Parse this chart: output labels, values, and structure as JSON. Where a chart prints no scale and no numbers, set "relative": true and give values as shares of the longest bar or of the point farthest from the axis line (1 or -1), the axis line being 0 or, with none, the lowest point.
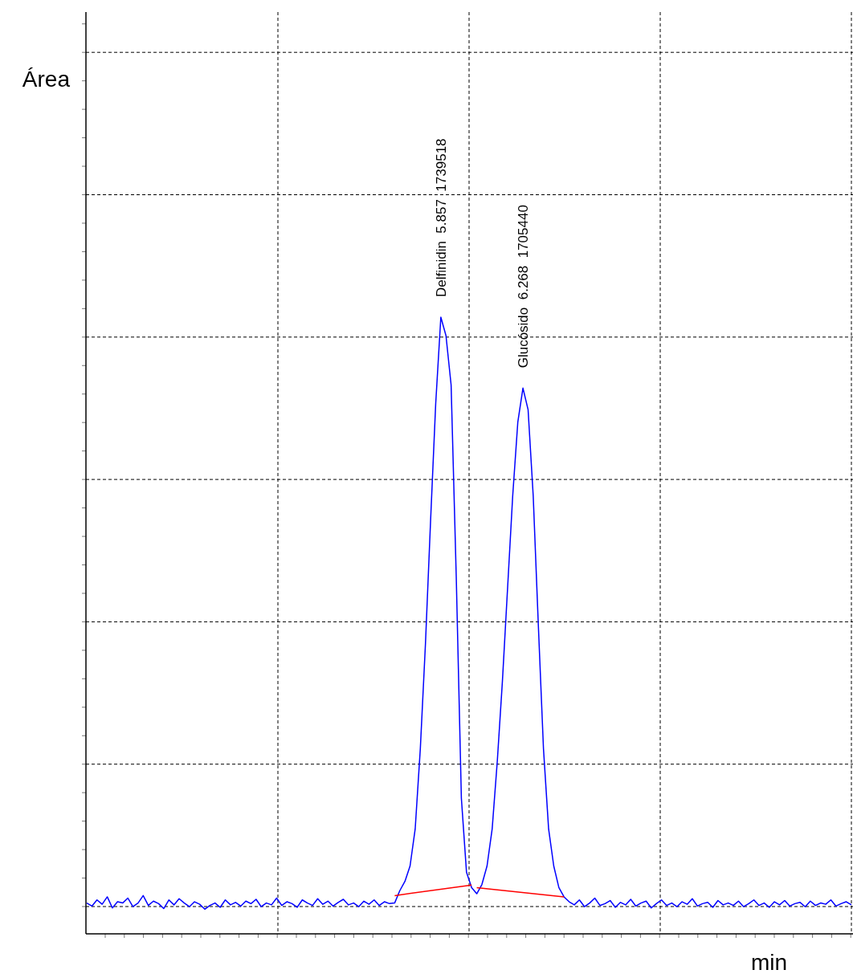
{
  "chart_data": {
    "type": "line",
    "relative": true,
    "grid": true,
    "xlabel": "min",
    "categories": [
      null,
      null,
      null,
      null,
      null,
      null,
      null,
      null,
      null,
      null,
      null,
      null,
      null,
      null,
      null,
      null,
      null,
      null,
      null,
      null,
      null,
      null,
      null,
      null,
      null,
      null,
      null,
      null,
      null,
      null,
      null,
      null,
      null,
      null,
      null,
      null,
      null,
      null,
      null,
      null,
      null,
      null,
      null,
      null,
      null,
      null,
      null,
      null,
      null,
      null,
      null,
      null,
      null,
      null,
      null,
      null,
      null,
      null,
      null,
      null,
      null,
      null,
      null,
      null,
      null,
      null,
      null,
      null,
      null,
      null,
      null,
      null,
      null,
      null,
      null,
      null,
      null,
      null,
      null,
      null,
      null,
      null,
      null,
      null,
      null,
      null,
      null,
      null,
      null,
      null,
      null,
      null,
      null,
      null,
      null,
      null,
      null,
      null,
      null,
      null,
      null,
      null,
      null,
      null,
      null,
      null,
      null,
      null,
      null,
      null,
      null,
      null,
      null,
      null,
      null,
      null,
      null,
      null,
      null,
      null,
      null,
      null,
      null,
      null,
      null,
      null,
      null,
      null,
      null,
      null,
      null,
      null,
      null,
      null,
      null,
      null,
      null,
      null,
      null,
      null,
      null,
      null,
      null,
      null,
      null,
      null,
      null,
      null,
      null,
      null
    ],
    "series": [
      {
        "color": "#0000ff",
        "values": [
          0.05,
          0.045,
          0.055,
          0.048,
          0.06,
          0.042,
          0.052,
          0.05,
          0.058,
          0.044,
          0.05,
          0.062,
          0.046,
          0.053,
          0.049,
          0.041,
          0.055,
          0.047,
          0.057,
          0.05,
          0.044,
          0.052,
          0.048,
          0.04,
          0.046,
          0.05,
          0.043,
          0.055,
          0.047,
          0.051,
          0.045,
          0.053,
          0.049,
          0.056,
          0.044,
          0.05,
          0.047,
          0.058,
          0.046,
          0.052,
          0.049,
          0.043,
          0.055,
          0.05,
          0.046,
          0.057,
          0.048,
          0.053,
          0.045,
          0.051,
          0.056,
          0.047,
          0.05,
          0.044,
          0.053,
          0.048,
          0.055,
          0.046,
          0.052,
          0.049,
          0.05,
          0.07,
          0.085,
          0.11,
          0.17,
          0.3,
          0.47,
          0.67,
          0.86,
          1,
          0.97,
          0.89,
          0.58,
          0.22,
          0.1,
          0.075,
          0.065,
          0.08,
          0.11,
          0.17,
          0.28,
          0.41,
          0.56,
          0.71,
          0.83,
          0.885,
          0.85,
          0.71,
          0.5,
          0.3,
          0.17,
          0.11,
          0.075,
          0.06,
          0.052,
          0.047,
          0.055,
          0.044,
          0.05,
          0.058,
          0.046,
          0.049,
          0.054,
          0.043,
          0.051,
          0.047,
          0.056,
          0.045,
          0.05,
          0.053,
          0.042,
          0.049,
          0.055,
          0.046,
          0.05,
          0.044,
          0.052,
          0.048,
          0.057,
          0.045,
          0.049,
          0.051,
          0.043,
          0.054,
          0.047,
          0.05,
          0.046,
          0.053,
          0.044,
          0.049,
          0.055,
          0.046,
          0.05,
          0.043,
          0.052,
          0.047,
          0.054,
          0.045,
          0.049,
          0.051,
          0.044,
          0.053,
          0.046,
          0.05,
          0.048,
          0.055,
          0.045,
          0.049,
          0.052,
          0.047
        ]
      },
      {
        "color": "#ff0000",
        "values": [
          null,
          null,
          null,
          null,
          null,
          null,
          null,
          null,
          null,
          null,
          null,
          null,
          null,
          null,
          null,
          null,
          null,
          null,
          null,
          null,
          null,
          null,
          null,
          null,
          null,
          null,
          null,
          null,
          null,
          null,
          null,
          null,
          null,
          null,
          null,
          null,
          null,
          null,
          null,
          null,
          null,
          null,
          null,
          null,
          null,
          null,
          null,
          null,
          null,
          null,
          null,
          null,
          null,
          null,
          null,
          null,
          null,
          null,
          null,
          null,
          0.062,
          null,
          null,
          null,
          null,
          null,
          null,
          null,
          null,
          null,
          null,
          null,
          null,
          null,
          null,
          0.079,
          null,
          null,
          null,
          null,
          null,
          null,
          null,
          null,
          null,
          null,
          null,
          null,
          null,
          null,
          null,
          null,
          null,
          null,
          null,
          null,
          null,
          null,
          null,
          null,
          null,
          null,
          null,
          null,
          null,
          null,
          null,
          null,
          null,
          null,
          null,
          null,
          null,
          null,
          null,
          null,
          null,
          null,
          null,
          null,
          null,
          null,
          null,
          null,
          null,
          null,
          null,
          null,
          null,
          null,
          null,
          null,
          null,
          null,
          null,
          null,
          null,
          null,
          null,
          null,
          null,
          null,
          null,
          null,
          null,
          null,
          null,
          null,
          null,
          null
        ]
      },
      {
        "color": "#ff0000",
        "values": [
          null,
          null,
          null,
          null,
          null,
          null,
          null,
          null,
          null,
          null,
          null,
          null,
          null,
          null,
          null,
          null,
          null,
          null,
          null,
          null,
          null,
          null,
          null,
          null,
          null,
          null,
          null,
          null,
          null,
          null,
          null,
          null,
          null,
          null,
          null,
          null,
          null,
          null,
          null,
          null,
          null,
          null,
          null,
          null,
          null,
          null,
          null,
          null,
          null,
          null,
          null,
          null,
          null,
          null,
          null,
          null,
          null,
          null,
          null,
          null,
          null,
          null,
          null,
          null,
          null,
          null,
          null,
          null,
          null,
          null,
          null,
          null,
          null,
          null,
          null,
          null,
          0.075,
          null,
          null,
          null,
          null,
          null,
          null,
          null,
          null,
          null,
          null,
          null,
          null,
          null,
          null,
          null,
          null,
          0.06,
          null,
          null,
          null,
          null,
          null,
          null,
          null,
          null,
          null,
          null,
          null,
          null,
          null,
          null,
          null,
          null,
          null,
          null,
          null,
          null,
          null,
          null,
          null,
          null,
          null,
          null,
          null,
          null,
          null,
          null,
          null,
          null,
          null,
          null,
          null,
          null,
          null,
          null,
          null,
          null,
          null,
          null,
          null,
          null,
          null,
          null,
          null,
          null,
          null,
          null,
          null,
          null,
          null,
          null,
          null,
          null
        ]
      }
    ],
    "annotations": [
      "Área",
      {
        "text": "Delfinidin  5.857  1739518",
        "y": 1
      },
      {
        "text": "Glucósido  6.268  1705440",
        "y": 0.885
      }
    ]
  }
}
